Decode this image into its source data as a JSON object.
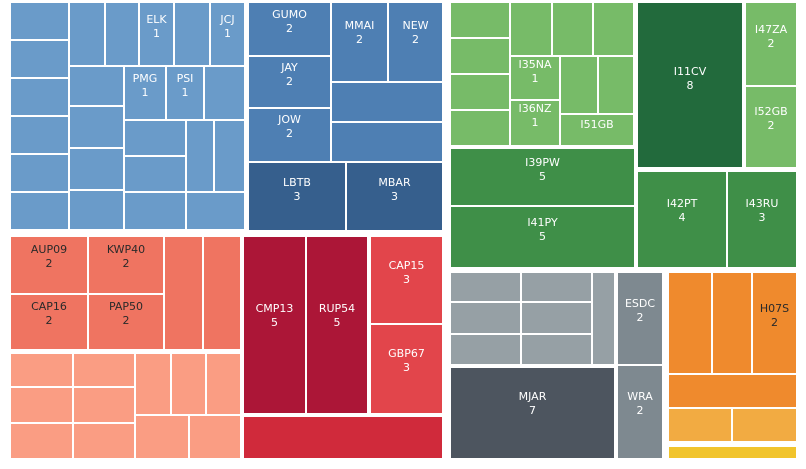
{
  "chart_data": {
    "type": "treemap",
    "title": "",
    "groups": [
      {
        "name": "blue-light",
        "color": "#6a9bc9",
        "cells": [
          {
            "label": "ELK",
            "value": 1
          },
          {
            "label": "JCJ",
            "value": 1
          },
          {
            "label": "PMG",
            "value": 1
          },
          {
            "label": "PSI",
            "value": 1
          }
        ]
      },
      {
        "name": "blue",
        "color": "#4e7fb3",
        "cells": [
          {
            "label": "GUMO",
            "value": 2
          },
          {
            "label": "MMAI",
            "value": 2
          },
          {
            "label": "NEW",
            "value": 2
          },
          {
            "label": "JAY",
            "value": 2
          },
          {
            "label": "JOW",
            "value": 2
          }
        ]
      },
      {
        "name": "blue-dark",
        "color": "#365f8d",
        "cells": [
          {
            "label": "LBTB",
            "value": 3
          },
          {
            "label": "MBAR",
            "value": 3
          }
        ]
      },
      {
        "name": "green-light",
        "color": "#77bb68",
        "cells": [
          {
            "label": "I35NA",
            "value": 1
          },
          {
            "label": "I36NZ",
            "value": 1
          },
          {
            "label": "I51GB",
            "value": ""
          },
          {
            "label": "I47ZA",
            "value": 2
          },
          {
            "label": "I52GB",
            "value": 2
          }
        ]
      },
      {
        "name": "green-dark",
        "color": "#226a3c",
        "cells": [
          {
            "label": "I11CV",
            "value": 8
          }
        ]
      },
      {
        "name": "green",
        "color": "#3f8f48",
        "cells": [
          {
            "label": "I39PW",
            "value": 5
          },
          {
            "label": "I41PY",
            "value": 5
          },
          {
            "label": "I42PT",
            "value": 4
          },
          {
            "label": "I43RU",
            "value": 3
          }
        ]
      },
      {
        "name": "salmon",
        "color": "#ef7461",
        "cells": [
          {
            "label": "AUP09",
            "value": 2
          },
          {
            "label": "KWP40",
            "value": 2
          },
          {
            "label": "CAP16",
            "value": 2
          },
          {
            "label": "PAP50",
            "value": 2
          }
        ]
      },
      {
        "name": "crimson",
        "color": "#ac1637",
        "cells": [
          {
            "label": "CMP13",
            "value": 5
          },
          {
            "label": "RUP54",
            "value": 5
          }
        ]
      },
      {
        "name": "red",
        "color": "#e2454b",
        "cells": [
          {
            "label": "CAP15",
            "value": 3
          },
          {
            "label": "GBP67",
            "value": 3
          }
        ]
      },
      {
        "name": "gray",
        "color": "#7e8990",
        "cells": [
          {
            "label": "ESDC",
            "value": 2
          },
          {
            "label": "WRA",
            "value": 2
          }
        ]
      },
      {
        "name": "slate",
        "color": "#4d555f",
        "cells": [
          {
            "label": "MJAR",
            "value": 7
          }
        ]
      },
      {
        "name": "orange",
        "color": "#ef8a2d",
        "cells": [
          {
            "label": "H07S",
            "value": 2
          }
        ]
      }
    ]
  }
}
